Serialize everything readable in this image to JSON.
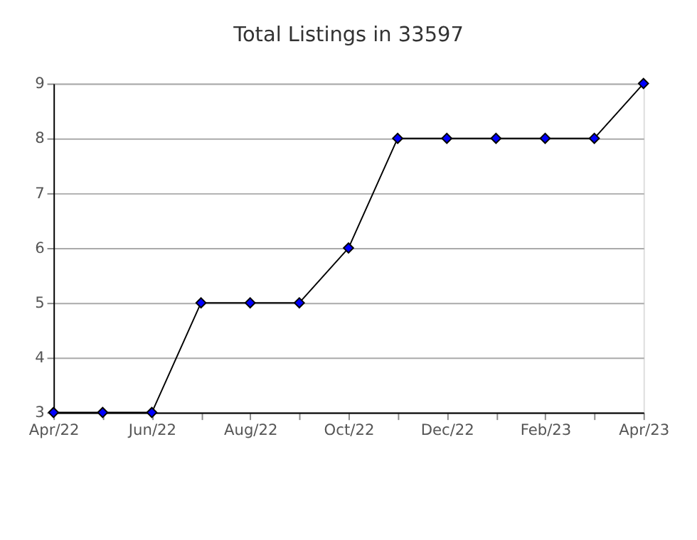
{
  "chart_data": {
    "type": "line",
    "title": "Total Listings in 33597",
    "categories": [
      "Apr/22",
      null,
      "Jun/22",
      null,
      "Aug/22",
      null,
      "Oct/22",
      null,
      "Dec/22",
      null,
      "Feb/23",
      null,
      "Apr/23"
    ],
    "series": [
      {
        "color": "#0000ff",
        "values": [
          3,
          3,
          3,
          5,
          5,
          5,
          6,
          8,
          8,
          8,
          8,
          8,
          9
        ]
      }
    ],
    "ylim": [
      3,
      9
    ],
    "yticks": [
      3,
      4,
      5,
      6,
      7,
      8,
      9
    ],
    "grid": "y",
    "marker": "diamond",
    "line_style": "solid"
  }
}
